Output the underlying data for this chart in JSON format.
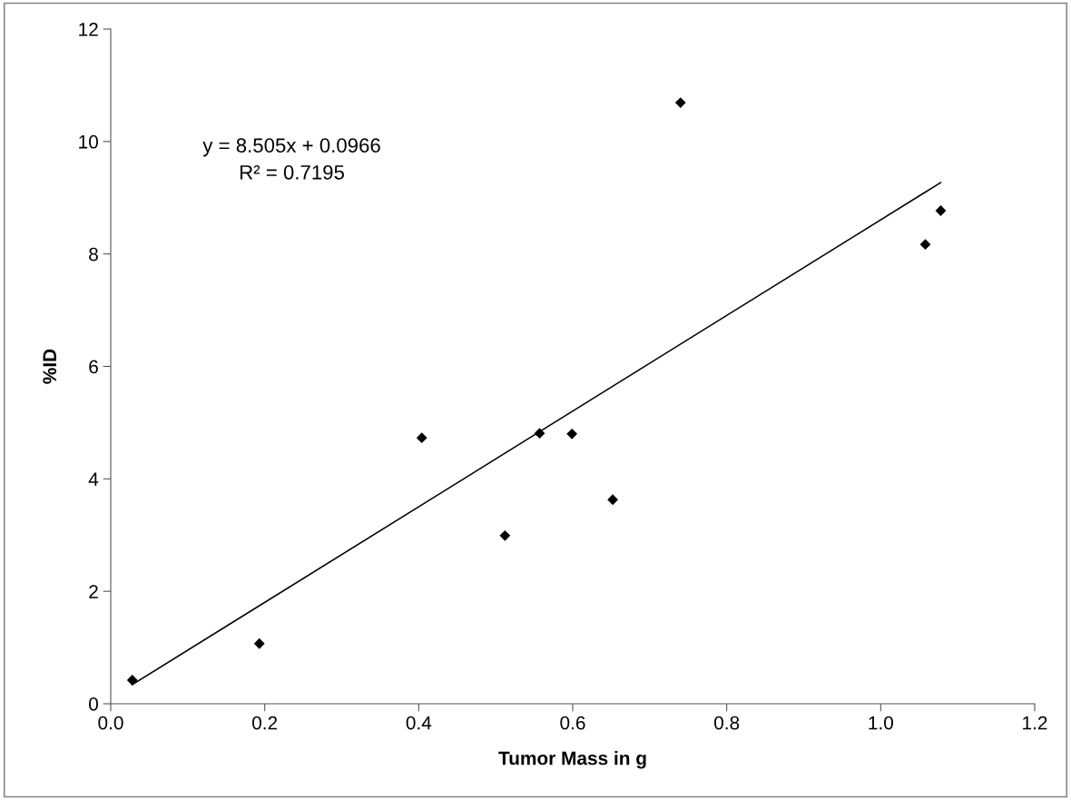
{
  "chart_data": {
    "type": "scatter",
    "xlabel": "Tumor Mass in g",
    "ylabel": "%ID",
    "xlim": [
      0.0,
      1.2
    ],
    "xticks": [
      {
        "value": 0.0,
        "label": "0.0"
      },
      0.2,
      0.4,
      0.6,
      0.8,
      {
        "value": 1.0,
        "label": "1.0"
      },
      1.2
    ],
    "ylim": [
      0,
      12
    ],
    "yticks": [
      0,
      2,
      4,
      6,
      8,
      10,
      12
    ],
    "grid": false,
    "marker": "diamond",
    "series": [
      {
        "color": "#000000",
        "x": [
          0.028,
          0.193,
          0.404,
          0.512,
          0.557,
          0.599,
          0.652,
          0.74,
          1.058,
          1.078
        ],
        "values": [
          0.42,
          1.07,
          4.73,
          2.99,
          4.81,
          4.8,
          3.63,
          10.69,
          8.17,
          8.77
        ]
      },
      {
        "type": "line",
        "color": "#000000",
        "marker": "none",
        "line_style": "solid",
        "x": [
          0.028,
          1.078
        ],
        "values": [
          0.34,
          9.27
        ]
      }
    ],
    "annotations": [
      "y = 8.505x + 0.0966",
      "R² = 0.7195"
    ]
  }
}
